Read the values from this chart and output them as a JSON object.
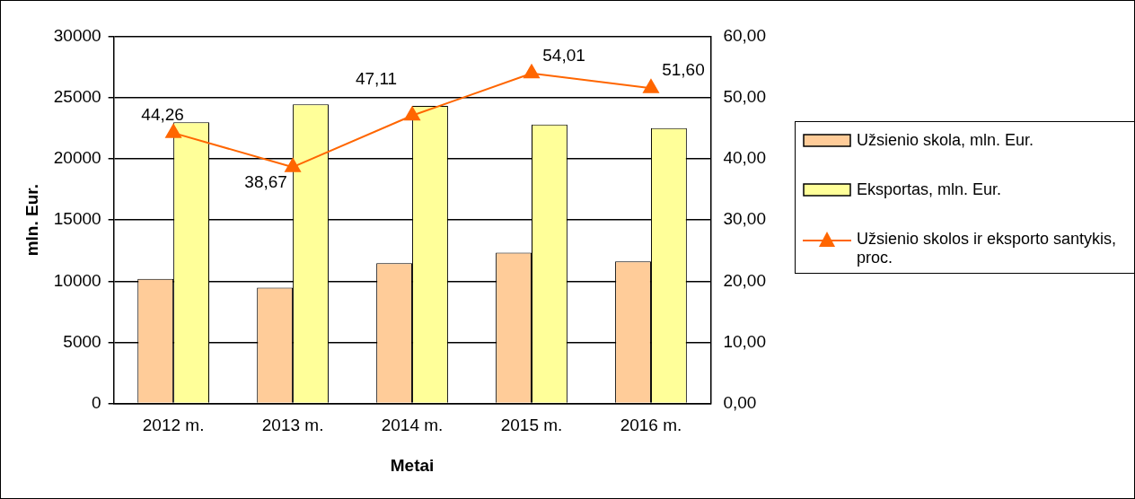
{
  "chart_data": {
    "type": "bar",
    "xlabel": "Metai",
    "ylabel": "mln. Eur.",
    "categories": [
      "2012 m.",
      "2013 m.",
      "2014 m.",
      "2015 m.",
      "2016 m."
    ],
    "series": [
      {
        "name": "Užsienio skola, mln. Eur.",
        "color": "#ffcc99",
        "values": [
          10180,
          9470,
          11470,
          12330,
          11620
        ]
      },
      {
        "name": "Eksportas, mln. Eur.",
        "color": "#ffff99",
        "values": [
          23000,
          24480,
          24340,
          22820,
          22520
        ]
      },
      {
        "name": "Užsienio skolos ir eksporto santykis, proc.",
        "type": "line",
        "axis": "y2",
        "color": "#ff6600",
        "marker": "triangle",
        "values": [
          44.26,
          38.67,
          47.11,
          54.01,
          51.6
        ],
        "value_labels": [
          "44,26",
          "38,67",
          "47,11",
          "54,01",
          "51,60"
        ]
      }
    ],
    "ylim": [
      0,
      30000
    ],
    "yticks": [
      0,
      5000,
      10000,
      15000,
      20000,
      25000,
      30000
    ],
    "y2lim": [
      0,
      60
    ],
    "y2ticks": [
      {
        "value": 0,
        "label": "0,00"
      },
      {
        "value": 10,
        "label": "10,00"
      },
      {
        "value": 20,
        "label": "20,00"
      },
      {
        "value": 30,
        "label": "30,00"
      },
      {
        "value": 40,
        "label": "40,00"
      },
      {
        "value": 50,
        "label": "50,00"
      },
      {
        "value": 60,
        "label": "60,00"
      }
    ],
    "grid": "y",
    "legend": "right"
  }
}
